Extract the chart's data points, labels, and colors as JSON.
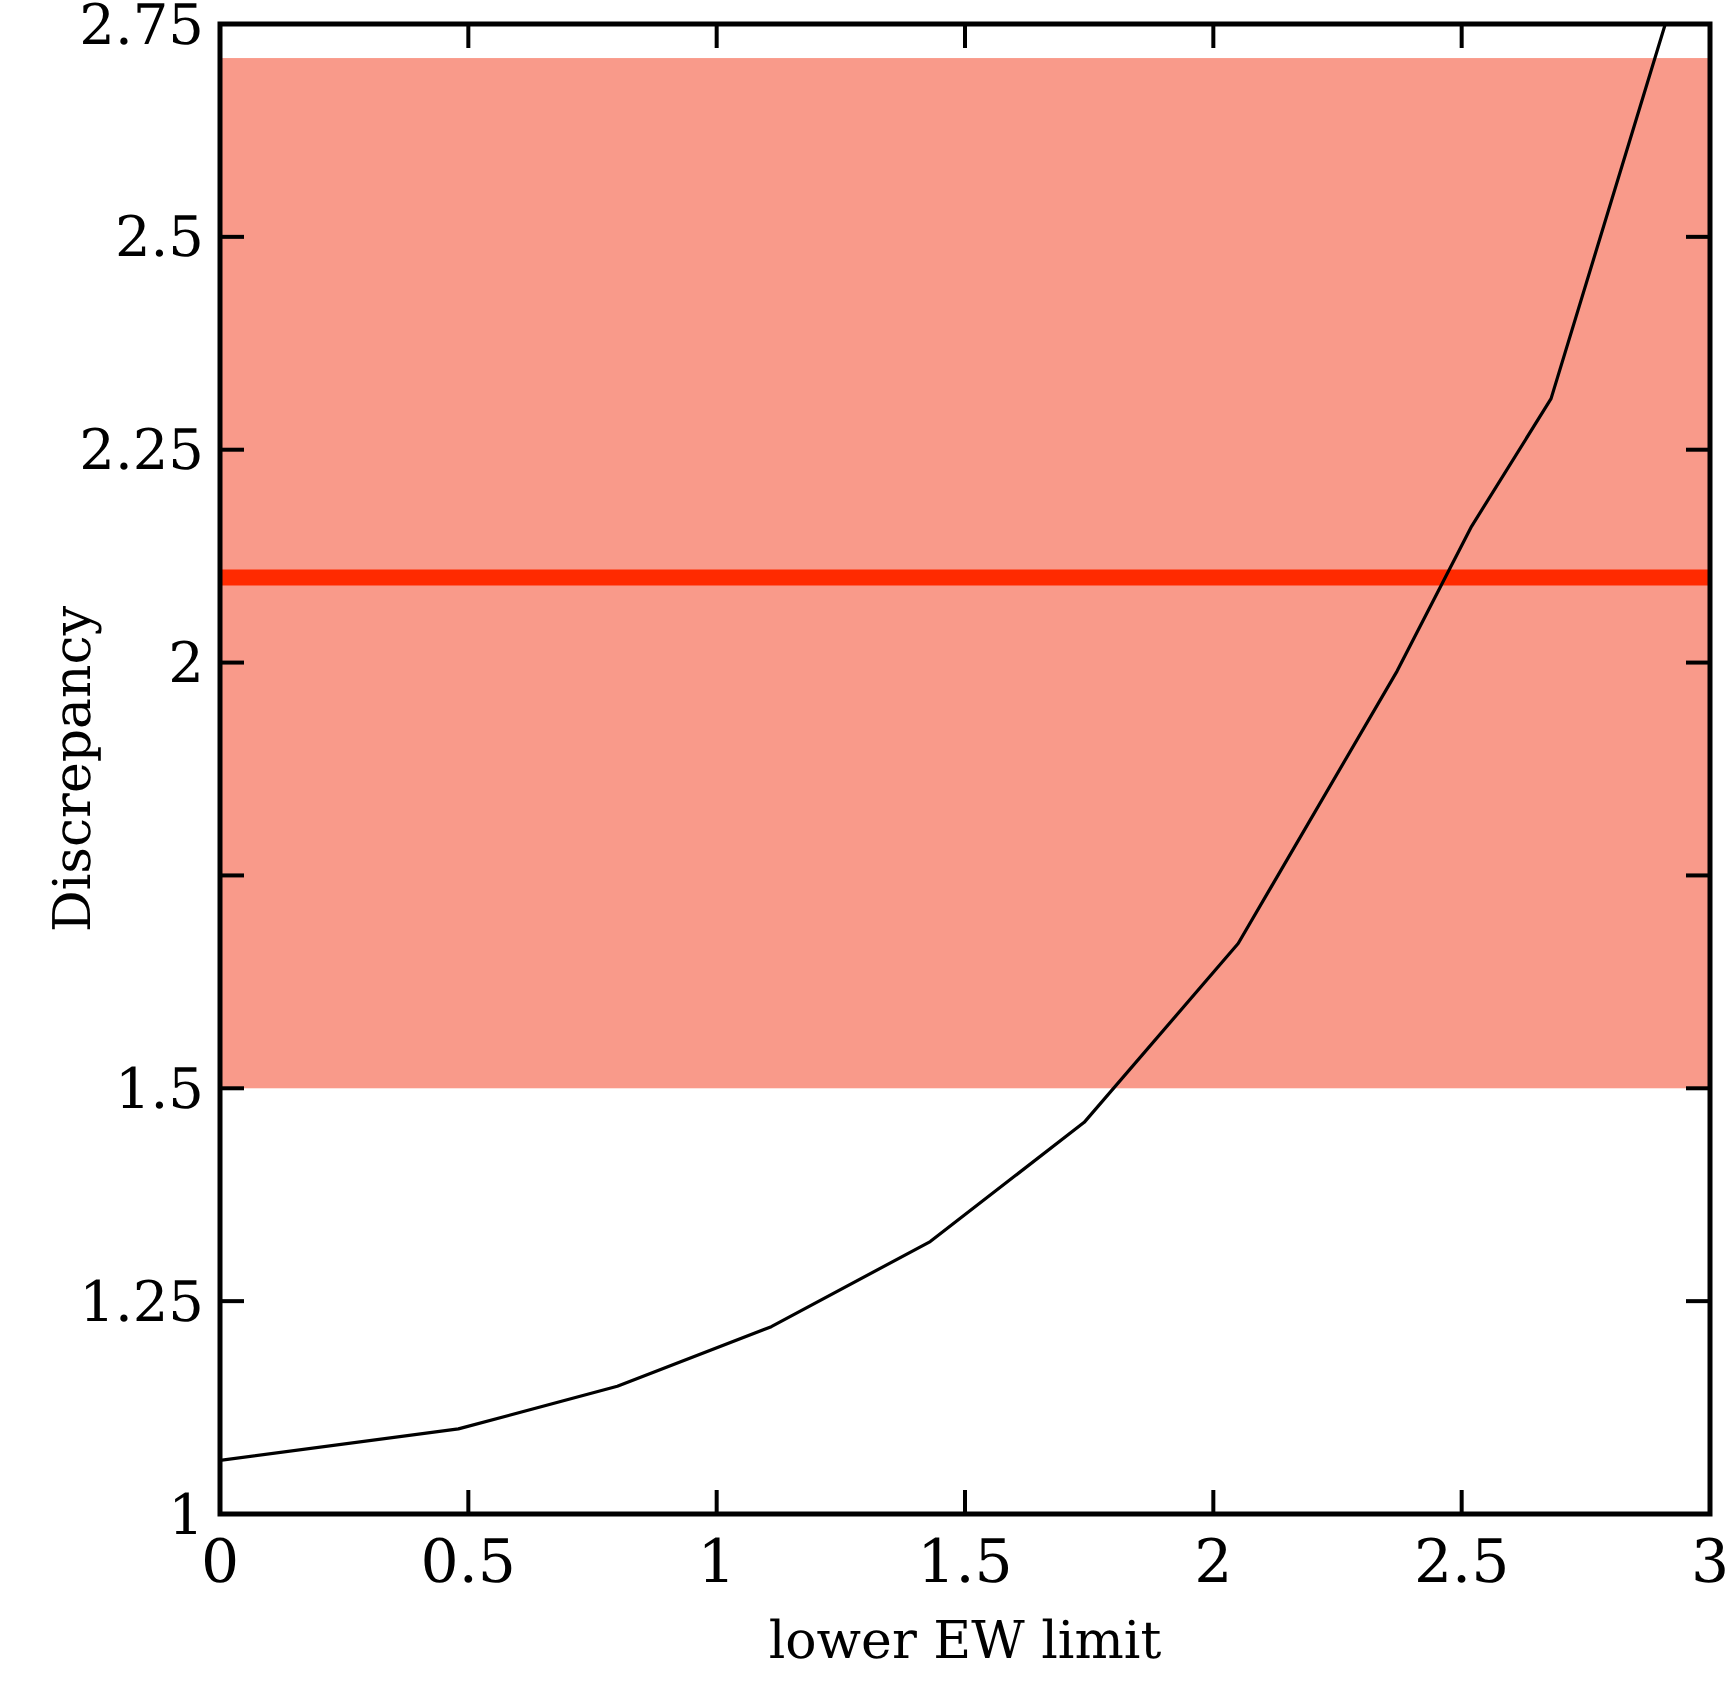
{
  "chart_data": {
    "type": "line",
    "xlabel": "lower EW limit",
    "ylabel": "Discrepancy",
    "x": [
      0,
      0.48,
      0.8,
      1.11,
      1.43,
      1.74,
      2.05,
      2.37,
      2.52,
      2.68,
      2.91
    ],
    "series": [
      {
        "color": "#000000",
        "values": [
          1.063,
          1.1,
          1.15,
          1.22,
          1.32,
          1.46,
          1.67,
          1.99,
          2.16,
          2.31,
          2.75
        ]
      }
    ],
    "xlim": [
      0,
      3
    ],
    "xticks": [
      0,
      0.5,
      1,
      1.5,
      2,
      2.5,
      3
    ],
    "ylim": [
      1,
      2.75
    ],
    "yticks": [
      1,
      1.25,
      1.5,
      {
        "value": 1.75,
        "label": null
      },
      2,
      2.25,
      2.5,
      2.75
    ],
    "bands": [
      {
        "axis": "y",
        "from": 1.5,
        "to": 2.71,
        "color": "#f99a8a"
      }
    ],
    "ref_lines": [
      {
        "axis": "y",
        "value": 2.1,
        "color": "#ff2a00"
      }
    ],
    "grid": false,
    "marker": "none",
    "line_style": "solid"
  }
}
